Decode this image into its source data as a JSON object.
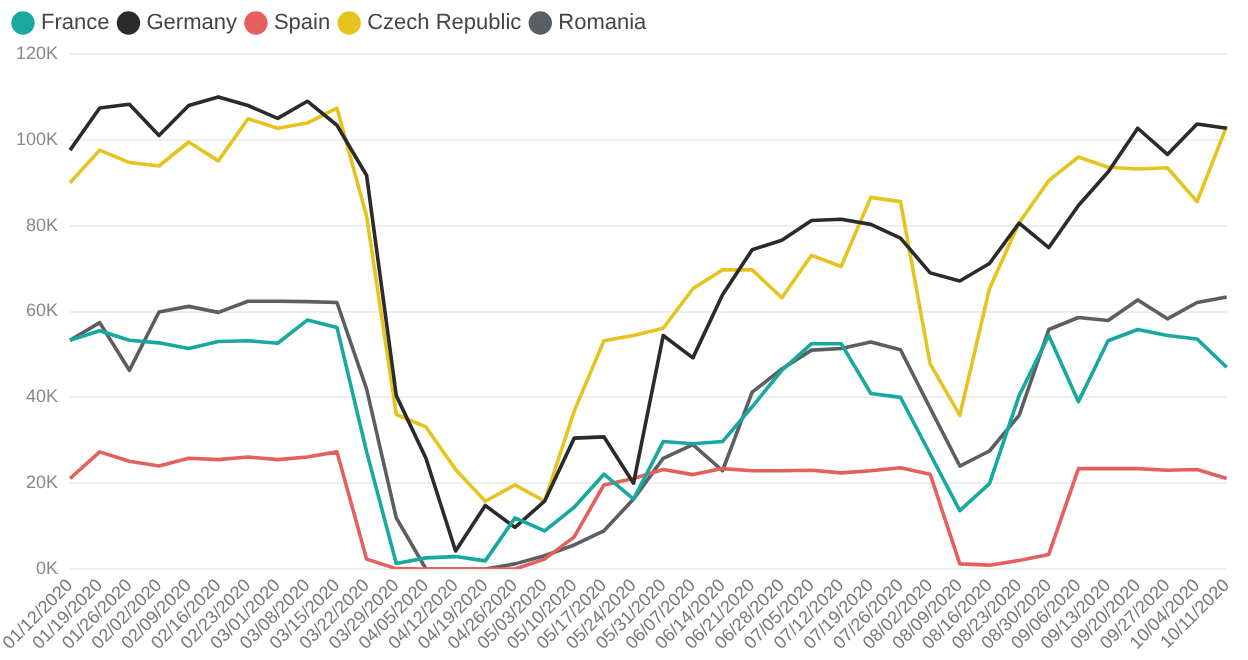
{
  "chart_data": {
    "type": "line",
    "categories": [
      "01/12/2020",
      "01/19/2020",
      "01/26/2020",
      "02/02/2020",
      "02/09/2020",
      "02/16/2020",
      "02/23/2020",
      "03/01/2020",
      "03/08/2020",
      "03/15/2020",
      "03/22/2020",
      "03/29/2020",
      "04/05/2020",
      "04/12/2020",
      "04/19/2020",
      "04/26/2020",
      "05/03/2020",
      "05/10/2020",
      "05/17/2020",
      "05/24/2020",
      "05/31/2020",
      "06/07/2020",
      "06/14/2020",
      "06/21/2020",
      "06/28/2020",
      "07/05/2020",
      "07/12/2020",
      "07/19/2020",
      "07/26/2020",
      "08/02/2020",
      "08/09/2020",
      "08/16/2020",
      "08/23/2020",
      "08/30/2020",
      "09/06/2020",
      "09/13/2020",
      "09/20/2020",
      "09/27/2020",
      "10/04/2020",
      "10/11/2020"
    ],
    "series": [
      {
        "name": "France",
        "color": "#17a8a0",
        "values": [
          53300,
          55500,
          53300,
          52700,
          51400,
          53000,
          53200,
          52600,
          58000,
          56300,
          27300,
          1300,
          2600,
          2900,
          1900,
          11900,
          8900,
          14400,
          22100,
          16300,
          29700,
          29200,
          29700,
          37800,
          46300,
          52500,
          52500,
          40900,
          40000,
          26800,
          13600,
          19900,
          40400,
          54400,
          39000,
          53200,
          55800,
          54400,
          53600,
          47000
        ]
      },
      {
        "name": "Germany",
        "color": "#2b2b2b",
        "values": [
          97600,
          107400,
          108300,
          101000,
          108000,
          110000,
          108000,
          105000,
          109000,
          103400,
          91700,
          40400,
          25800,
          4200,
          14800,
          9700,
          15800,
          30500,
          30800,
          20000,
          54400,
          49200,
          63900,
          74400,
          76600,
          81200,
          81500,
          80300,
          77100,
          69000,
          67100,
          71200,
          80600,
          74900,
          84700,
          92500,
          102700,
          96600,
          103700,
          102700
        ]
      },
      {
        "name": "Spain",
        "color": "#e5605d",
        "values": [
          21100,
          27300,
          25100,
          24000,
          25800,
          25500,
          26100,
          25500,
          26100,
          27300,
          2300,
          100,
          0,
          0,
          0,
          0,
          2300,
          7500,
          19600,
          21100,
          23200,
          22000,
          23400,
          22900,
          22900,
          23000,
          22400,
          22900,
          23600,
          22100,
          1200,
          900,
          2000,
          3400,
          23400,
          23400,
          23400,
          23000,
          23200,
          21100
        ]
      },
      {
        "name": "Czech Republic",
        "color": "#e6c41f",
        "values": [
          90000,
          97600,
          94700,
          93900,
          99500,
          95100,
          104900,
          102700,
          103900,
          107400,
          82200,
          36000,
          33100,
          23200,
          15800,
          19600,
          15800,
          36800,
          53200,
          54400,
          56100,
          65300,
          69700,
          69700,
          63200,
          73100,
          70500,
          86600,
          85600,
          47800,
          35800,
          65300,
          80700,
          90500,
          96000,
          93600,
          93200,
          93500,
          85600,
          103200
        ]
      },
      {
        "name": "Romania",
        "color": "#5a5f63",
        "values": [
          53300,
          57400,
          46300,
          59900,
          61200,
          59800,
          62400,
          62400,
          62300,
          62100,
          41900,
          11900,
          0,
          0,
          0,
          1200,
          3100,
          5600,
          8900,
          16300,
          25800,
          29000,
          22900,
          41200,
          46600,
          51000,
          51400,
          52900,
          51100,
          37500,
          24000,
          27500,
          35800,
          55800,
          58600,
          57900,
          62700,
          58300,
          62100,
          63400
        ]
      }
    ],
    "ylim": [
      0,
      120000
    ],
    "yticks": [
      {
        "value": 0,
        "label": "0K"
      },
      {
        "value": 20000,
        "label": "20K"
      },
      {
        "value": 40000,
        "label": "40K"
      },
      {
        "value": 60000,
        "label": "60K"
      },
      {
        "value": 80000,
        "label": "80K"
      },
      {
        "value": 100000,
        "label": "100K"
      },
      {
        "value": 120000,
        "label": "120K"
      }
    ],
    "grid": "y",
    "legend": "top left",
    "marker": "none",
    "line_style": "solid"
  }
}
